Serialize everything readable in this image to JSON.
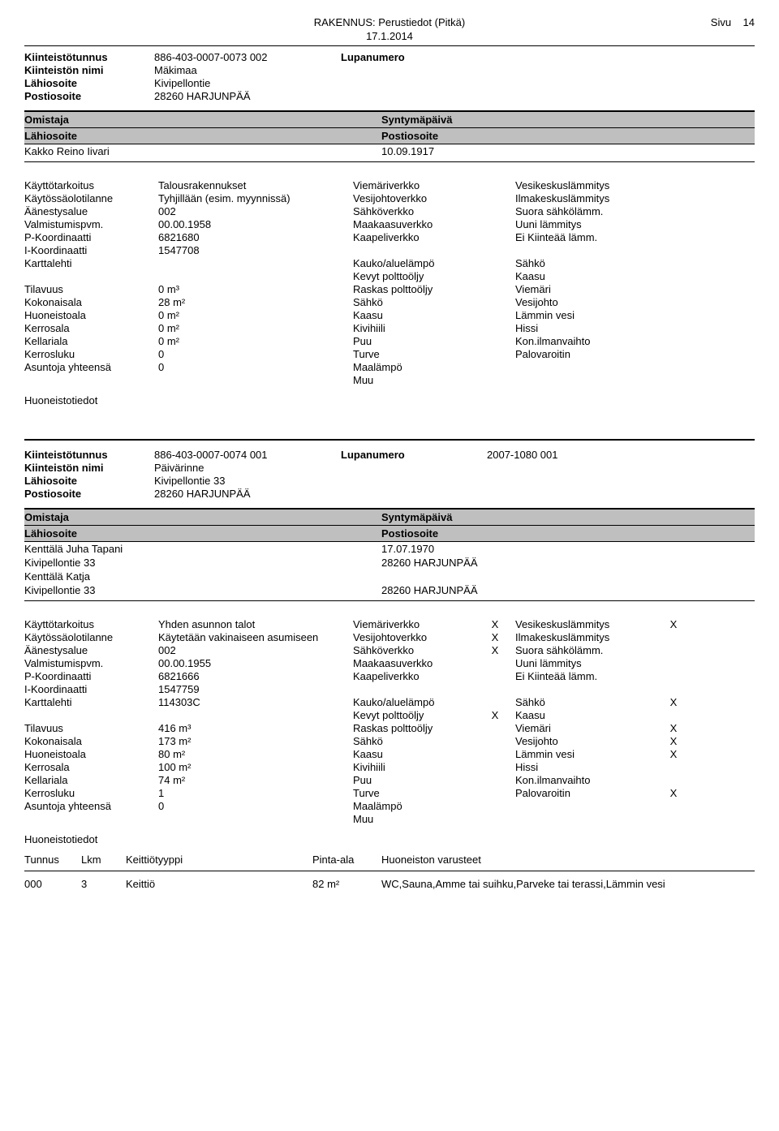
{
  "header": {
    "title": "RAKENNUS: Perustiedot (Pitkä)",
    "date": "17.1.2014",
    "page_label": "Sivu",
    "page_num": "14"
  },
  "labels": {
    "kiinteistotunnus": "Kiinteistötunnus",
    "kiinteiston_nimi": "Kiinteistön nimi",
    "lahiosoite": "Lähiosoite",
    "postiosoite": "Postiosoite",
    "lupanumero": "Lupanumero",
    "omistaja": "Omistaja",
    "syntymapaiva": "Syntymäpäivä",
    "huoneistotiedot": "Huoneistotiedot"
  },
  "rec1": {
    "tunnus": "886-403-0007-0073 002",
    "nimi": "Mäkimaa",
    "lahi": "Kivipellontie",
    "posti": "28260 HARJUNPÄÄ",
    "lupanum": "",
    "owners": [
      {
        "name": "Kakko Reino Iivari",
        "dob": "10.09.1917",
        "addr": "",
        "posti": ""
      }
    ],
    "left_labels": [
      "Käyttötarkoitus",
      "Käytössäolotilanne",
      "Äänestysalue",
      "Valmistumispvm.",
      "P-Koordinaatti",
      "I-Koordinaatti",
      "Karttalehti",
      "",
      "Tilavuus",
      "Kokonaisala",
      "Huoneistoala",
      "Kerrosala",
      "Kellariala",
      "Kerrosluku",
      "Asuntoja yhteensä"
    ],
    "left_vals": [
      "Talousrakennukset",
      "Tyhjillään (esim. myynnissä)",
      "002",
      "00.00.1958",
      "6821680",
      "1547708",
      "",
      "",
      "0 m³",
      "28 m²",
      "0 m²",
      "0 m²",
      "0 m²",
      "0",
      "0"
    ],
    "mid_labels": [
      "Viemäriverkko",
      "Vesijohtoverkko",
      "Sähköverkko",
      "Maakaasuverkko",
      "Kaapeliverkko",
      "",
      "Kauko/aluelämpö",
      "Kevyt polttoöljy",
      "Raskas polttoöljy",
      "Sähkö",
      "Kaasu",
      "Kivihiili",
      "Puu",
      "Turve",
      "Maalämpö",
      "Muu"
    ],
    "mid_x": [
      "",
      "",
      "",
      "",
      "",
      "",
      "",
      "",
      "",
      "",
      "",
      "",
      "",
      "",
      "",
      ""
    ],
    "right_labels": [
      "Vesikeskuslämmitys",
      "Ilmakeskuslämmitys",
      "Suora sähkölämm.",
      "Uuni lämmitys",
      "Ei Kiinteää lämm.",
      "",
      "Sähkö",
      "Kaasu",
      "Viemäri",
      "Vesijohto",
      "Lämmin vesi",
      "Hissi",
      "Kon.ilmanvaihto",
      "Palovaroitin",
      "",
      ""
    ],
    "right_x": [
      "",
      "",
      "",
      "",
      "",
      "",
      "",
      "",
      "",
      "",
      "",
      "",
      "",
      "",
      "",
      ""
    ]
  },
  "rec2": {
    "tunnus": "886-403-0007-0074 001",
    "nimi": "Päivärinne",
    "lahi": "Kivipellontie 33",
    "posti": "28260 HARJUNPÄÄ",
    "lupanum": "2007-1080 001",
    "owners": [
      {
        "name": "Kenttälä Juha Tapani",
        "dob": "17.07.1970",
        "addr": "Kivipellontie 33",
        "posti": "28260 HARJUNPÄÄ"
      },
      {
        "name": "Kenttälä Katja",
        "dob": "",
        "addr": "Kivipellontie 33",
        "posti": "28260 HARJUNPÄÄ"
      }
    ],
    "left_labels": [
      "Käyttötarkoitus",
      "Käytössäolotilanne",
      "Äänestysalue",
      "Valmistumispvm.",
      "P-Koordinaatti",
      "I-Koordinaatti",
      "Karttalehti",
      "",
      "Tilavuus",
      "Kokonaisala",
      "Huoneistoala",
      "Kerrosala",
      "Kellariala",
      "Kerrosluku",
      "Asuntoja yhteensä"
    ],
    "left_vals": [
      "Yhden asunnon talot",
      "Käytetään vakinaiseen asumiseen",
      "002",
      "00.00.1955",
      "6821666",
      "1547759",
      "114303C",
      "",
      "416 m³",
      "173 m²",
      "80 m²",
      "100 m²",
      "74 m²",
      "1",
      "0"
    ],
    "mid_labels": [
      "Viemäriverkko",
      "Vesijohtoverkko",
      "Sähköverkko",
      "Maakaasuverkko",
      "Kaapeliverkko",
      "",
      "Kauko/aluelämpö",
      "Kevyt polttoöljy",
      "Raskas polttoöljy",
      "Sähkö",
      "Kaasu",
      "Kivihiili",
      "Puu",
      "Turve",
      "Maalämpö",
      "Muu"
    ],
    "mid_x": [
      "X",
      "X",
      "X",
      "",
      "",
      "",
      "",
      "X",
      "",
      "",
      "",
      "",
      "",
      "",
      "",
      ""
    ],
    "right_labels": [
      "Vesikeskuslämmitys",
      "Ilmakeskuslämmitys",
      "Suora sähkölämm.",
      "Uuni lämmitys",
      "Ei Kiinteää lämm.",
      "",
      "Sähkö",
      "Kaasu",
      "Viemäri",
      "Vesijohto",
      "Lämmin vesi",
      "Hissi",
      "Kon.ilmanvaihto",
      "Palovaroitin",
      "",
      ""
    ],
    "right_x": [
      "X",
      "",
      "",
      "",
      "",
      "",
      "X",
      "",
      "X",
      "X",
      "X",
      "",
      "",
      "X",
      "",
      ""
    ]
  },
  "apt": {
    "headers": [
      "Tunnus",
      "Lkm",
      "Keittiötyyppi",
      "Pinta-ala",
      "Huoneiston varusteet"
    ],
    "rows": [
      [
        "000",
        "3",
        "Keittiö",
        "82 m²",
        "WC,Sauna,Amme tai suihku,Parveke tai terassi,Lämmin vesi"
      ]
    ]
  }
}
